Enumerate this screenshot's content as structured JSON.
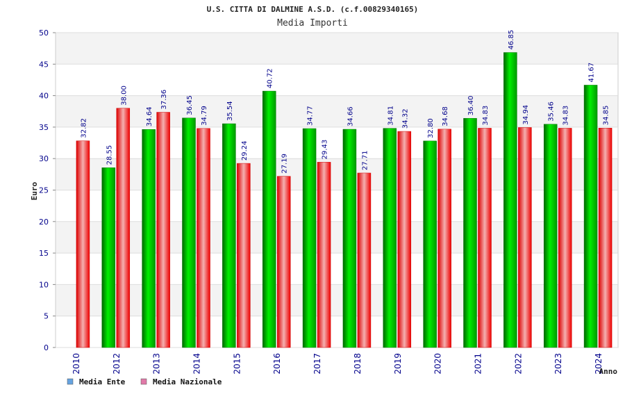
{
  "chart_data": {
    "type": "bar",
    "title": "U.S. CITTA DI DALMINE A.S.D. (c.f.00829340165)",
    "subtitle": "Media Importi",
    "ylabel": "Euro",
    "xlabel": "Anno",
    "ylim": [
      0,
      50
    ],
    "yticks": [
      0,
      5,
      10,
      15,
      20,
      25,
      30,
      35,
      40,
      45,
      50
    ],
    "grid": true,
    "legend_position": "bottom-left",
    "categories": [
      "2010",
      "2012",
      "2013",
      "2014",
      "2015",
      "2016",
      "2017",
      "2018",
      "2019",
      "2020",
      "2021",
      "2022",
      "2023",
      "2024"
    ],
    "series": [
      {
        "name": "Media Ente",
        "color": "#00aa00",
        "legend_color": "#66a3e0",
        "values": [
          null,
          28.55,
          34.64,
          36.45,
          35.54,
          40.72,
          34.77,
          34.66,
          34.81,
          32.8,
          36.4,
          46.85,
          35.46,
          41.67
        ],
        "labels": [
          "",
          "28.55",
          "34.64",
          "36.45",
          "35.54",
          "40.72",
          "34.77",
          "34.66",
          "34.81",
          "32.80",
          "36.40",
          "46.85",
          "35.46",
          "41.67"
        ]
      },
      {
        "name": "Media Nazionale",
        "color": "#ee1111",
        "legend_color": "#e07aa8",
        "values": [
          32.82,
          38.0,
          37.36,
          34.79,
          29.24,
          27.19,
          29.43,
          27.71,
          34.32,
          34.68,
          34.83,
          34.94,
          34.83,
          34.85
        ],
        "labels": [
          "32.82",
          "38.00",
          "37.36",
          "34.79",
          "29.24",
          "27.19",
          "29.43",
          "27.71",
          "34.32",
          "34.68",
          "34.83",
          "34.94",
          "34.83",
          "34.85"
        ]
      }
    ]
  }
}
